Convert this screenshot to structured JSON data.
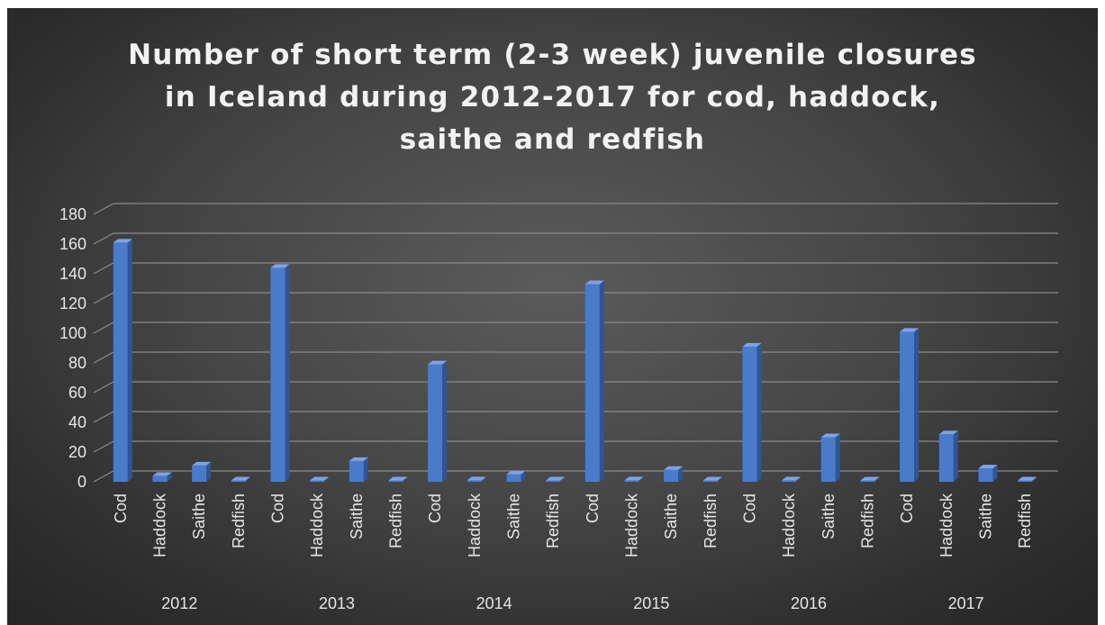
{
  "chart_data": {
    "type": "bar",
    "title": "Number of short term (2-3 week) juvenile closures in Iceland during 2012-2017 for cod, haddock, saithe and redfish",
    "ylim": [
      0,
      180
    ],
    "yticks": [
      0,
      20,
      40,
      60,
      80,
      100,
      120,
      140,
      160,
      180
    ],
    "grid": true,
    "legend": "none",
    "bar_color": "#4472c4",
    "groups": [
      {
        "label": "2012",
        "categories": [
          "Cod",
          "Haddock",
          "Saithe",
          "Redfish"
        ],
        "values": [
          161,
          4,
          11,
          0
        ]
      },
      {
        "label": "2013",
        "categories": [
          "Cod",
          "Haddock",
          "Saithe",
          "Redfish"
        ],
        "values": [
          144,
          0,
          14,
          0
        ]
      },
      {
        "label": "2014",
        "categories": [
          "Cod",
          "Haddock",
          "Saithe",
          "Redfish"
        ],
        "values": [
          79,
          1,
          5,
          0
        ]
      },
      {
        "label": "2015",
        "categories": [
          "Cod",
          "Haddock",
          "Saithe",
          "Redfish"
        ],
        "values": [
          133,
          1,
          8,
          0
        ]
      },
      {
        "label": "2016",
        "categories": [
          "Cod",
          "Haddock",
          "Saithe",
          "Redfish"
        ],
        "values": [
          91,
          1,
          30,
          0
        ]
      },
      {
        "label": "2017",
        "categories": [
          "Cod",
          "Haddock",
          "Saithe",
          "Redfish"
        ],
        "values": [
          101,
          32,
          9,
          0
        ]
      }
    ]
  }
}
